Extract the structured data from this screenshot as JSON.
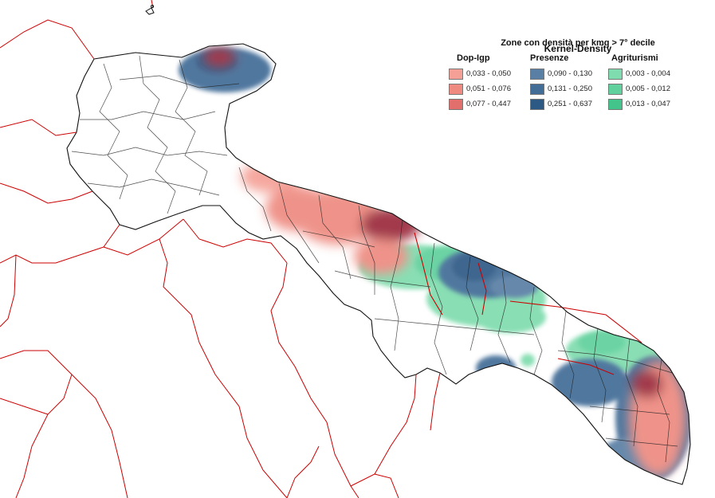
{
  "title": "Kernel-Density",
  "subtitle": "Zone con densità per kmq > 7° decile",
  "legend": [
    {
      "name": "Dop-Igp",
      "classes": [
        {
          "label": "0,033 - 0,050",
          "color": "#f4a096"
        },
        {
          "label": "0,051 - 0,076",
          "color": "#ee8a80"
        },
        {
          "label": "0,077 - 0,447",
          "color": "#e36f6c"
        }
      ]
    },
    {
      "name": "Presenze",
      "classes": [
        {
          "label": "0,090 - 0,130",
          "color": "#5a7fa4"
        },
        {
          "label": "0,131 - 0,250",
          "color": "#426d97"
        },
        {
          "label": "0,251 - 0,637",
          "color": "#2d5a85"
        }
      ]
    },
    {
      "name": "Agriturismi",
      "classes": [
        {
          "label": "0,003 - 0,004",
          "color": "#7fdcae"
        },
        {
          "label": "0,005 - 0,012",
          "color": "#60d19d"
        },
        {
          "label": "0,013 - 0,047",
          "color": "#43c48b"
        }
      ]
    }
  ],
  "colors": {
    "regional_border": "#cc0000",
    "municipal_border": "#111111",
    "region_fill": "#ffffff"
  }
}
